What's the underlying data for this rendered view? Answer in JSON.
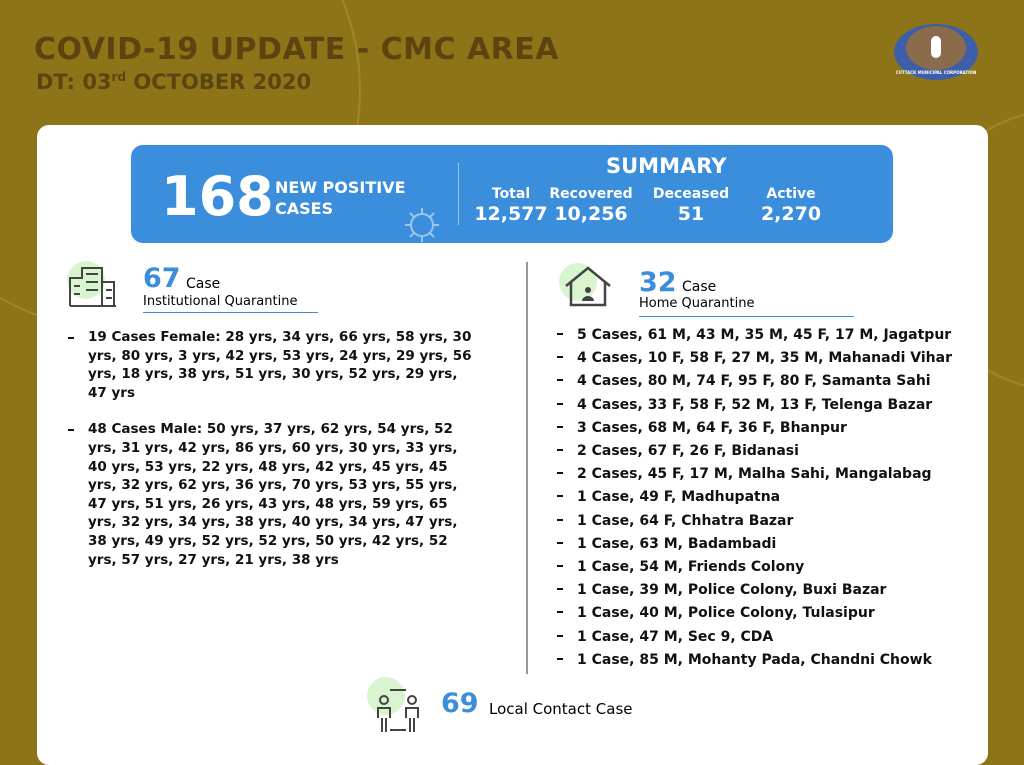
{
  "header": {
    "title": "COVID-19 UPDATE - CMC AREA",
    "date_prefix": "DT: 03",
    "date_sup": "rd",
    "date_suffix": " OCTOBER 2020",
    "logo_text": "CUTTACK MUNICIPAL CORPORATION"
  },
  "summary": {
    "new_positive": "168",
    "new_positive_line1": "NEW POSITIVE",
    "new_positive_line2": "CASES",
    "title": "SUMMARY",
    "stats": [
      {
        "label": "Total",
        "value": "12,577"
      },
      {
        "label": "Recovered",
        "value": "10,256"
      },
      {
        "label": "Deceased",
        "value": "51"
      },
      {
        "label": "Active",
        "value": "2,270"
      }
    ]
  },
  "institutional": {
    "count": "67",
    "unit": "Case",
    "label": "Institutional Quarantine",
    "items": [
      "19 Cases Female: 28 yrs, 34 yrs, 66 yrs, 58 yrs, 30 yrs, 80 yrs, 3 yrs, 42 yrs, 53 yrs, 24 yrs, 29 yrs, 56 yrs, 18 yrs, 38 yrs, 51 yrs, 30 yrs, 52 yrs, 29 yrs, 47 yrs",
      "48 Cases Male: 50 yrs, 37 yrs, 62 yrs, 54 yrs, 52 yrs, 31 yrs, 42 yrs, 86 yrs, 60 yrs, 30 yrs, 33 yrs, 40 yrs, 53 yrs, 22 yrs, 48 yrs, 42 yrs, 45 yrs, 45 yrs, 32 yrs, 62 yrs, 36 yrs, 70 yrs, 53 yrs, 55 yrs, 47 yrs, 51 yrs, 26 yrs, 43 yrs, 48 yrs, 59 yrs, 65 yrs, 32 yrs, 34 yrs, 38 yrs, 40 yrs, 34 yrs, 47 yrs, 38 yrs, 49 yrs, 52 yrs, 52 yrs, 50 yrs, 42 yrs, 52 yrs, 57 yrs, 27 yrs, 21 yrs, 38 yrs"
    ]
  },
  "home": {
    "count": "32",
    "unit": "Case",
    "label": "Home Quarantine",
    "items": [
      "5 Cases, 61 M, 43 M, 35 M, 45 F, 17 M, Jagatpur",
      "4 Cases, 10 F, 58 F, 27 M, 35 M, Mahanadi Vihar",
      "4 Cases, 80 M, 74 F, 95 F, 80 F, Samanta Sahi",
      "4 Cases, 33 F, 58 F, 52 M, 13 F, Telenga Bazar",
      "3 Cases, 68 M, 64 F, 36 F, Bhanpur",
      "2 Cases, 67 F, 26 F, Bidanasi",
      "2 Cases, 45 F, 17 M, Malha Sahi, Mangalabag",
      "1 Case, 49 F, Madhupatna",
      "1 Case, 64 F, Chhatra Bazar",
      "1 Case, 63 M, Badambadi",
      "1 Case, 54 M, Friends Colony",
      "1 Case, 39 M, Police Colony, Buxi Bazar",
      "1 Case, 40 M, Police Colony, Tulasipur",
      "1 Case, 47 M,  Sec 9, CDA",
      "1 Case, 85 M, Mohanty Pada, Chandni Chowk"
    ]
  },
  "local_contact": {
    "count": "69",
    "label": "Local Contact Case"
  }
}
